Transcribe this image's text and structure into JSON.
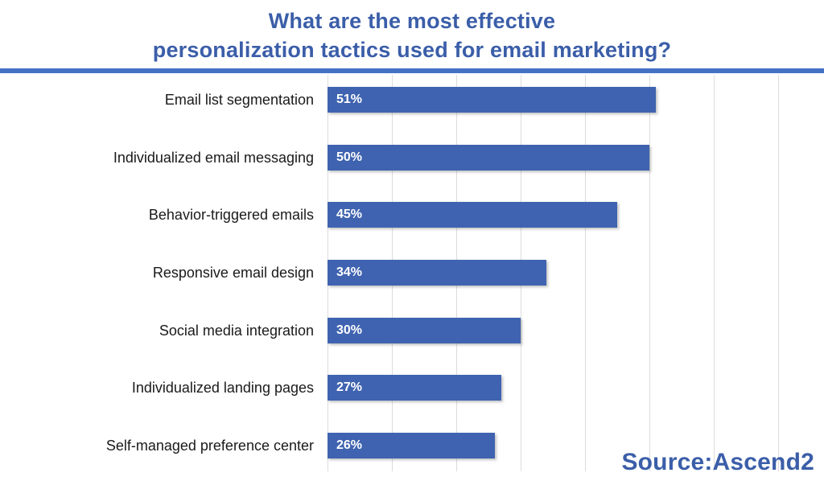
{
  "title": {
    "line1": "What are the most effective",
    "line2": "personalization tactics used for email marketing?"
  },
  "source": {
    "label": "Source:Ascend2"
  },
  "colors": {
    "bar": "#3F63B0",
    "title_text": "#3B5EA9",
    "source_text": "#3B5EA9",
    "header_rule": "#4372C4",
    "gridline": "#DCDCDC",
    "value_label": "#FFFFFF",
    "category_label": "#1A1A1A"
  },
  "chart_data": {
    "type": "bar",
    "orientation": "horizontal",
    "title": "What are the most effective personalization tactics used for email marketing?",
    "categories": [
      "Email list segmentation",
      "Individualized email messaging",
      "Behavior-triggered emails",
      "Responsive email design",
      "Social media integration",
      "Individualized landing pages",
      "Self-managed preference center"
    ],
    "values": [
      51,
      50,
      45,
      34,
      30,
      27,
      26
    ],
    "value_suffix": "%",
    "value_labels": "inside-left",
    "xlabel": "",
    "ylabel": "",
    "xlim": [
      0,
      70
    ],
    "gridline_interval": 10,
    "grid": true,
    "legend": false,
    "source": "Source:Ascend2"
  }
}
